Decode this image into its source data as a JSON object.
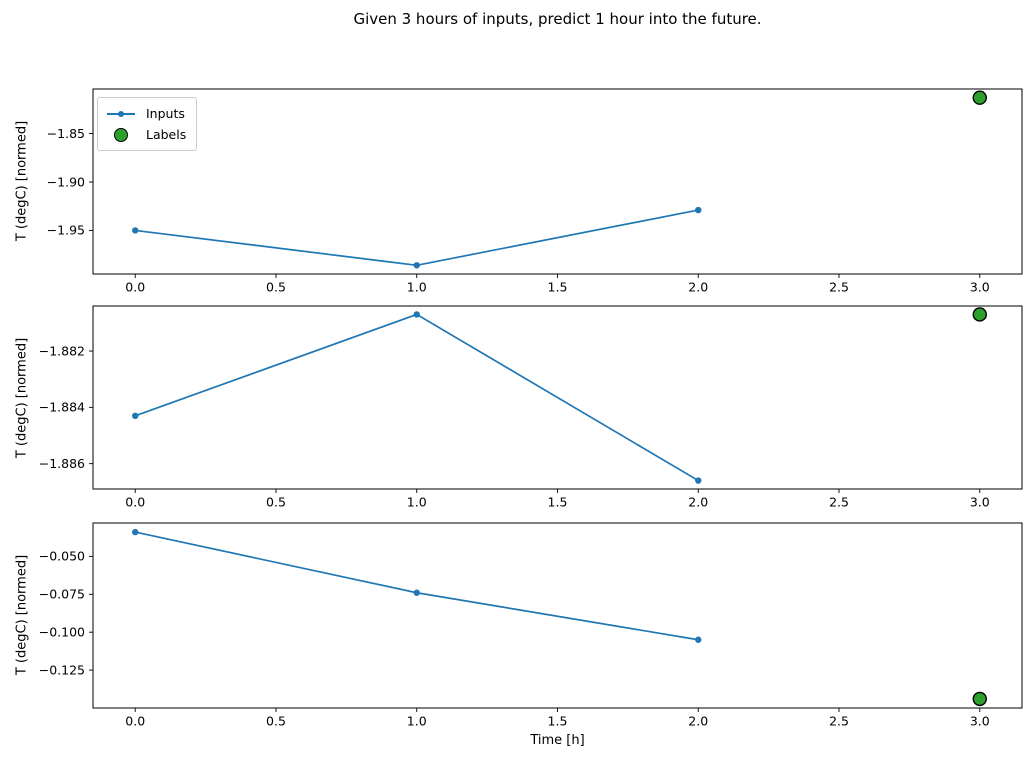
{
  "title": "Given 3 hours of inputs, predict 1 hour into the future.",
  "legend": {
    "inputs_label": "Inputs",
    "labels_label": "Labels"
  },
  "chart_data": {
    "type": "line",
    "title": "Given 3 hours of inputs, predict 1 hour into the future.",
    "xlabel": "Time [h]",
    "grid": false,
    "legend_position": "upper left of first subplot",
    "xlim": [
      -0.15,
      3.15
    ],
    "xticks": [
      {
        "v": 0.0,
        "label": "0.0"
      },
      {
        "v": 0.5,
        "label": "0.5"
      },
      {
        "v": 1.0,
        "label": "1.0"
      },
      {
        "v": 1.5,
        "label": "1.5"
      },
      {
        "v": 2.0,
        "label": "2.0"
      },
      {
        "v": 2.5,
        "label": "2.5"
      },
      {
        "v": 3.0,
        "label": "3.0"
      }
    ],
    "colors": {
      "inputs": "#1f77b4",
      "labels": "#2ca02c",
      "label_edge": "#000000"
    },
    "subplots": [
      {
        "ylabel": "T (degC) [normed]",
        "ylim": [
          -1.995,
          -1.804
        ],
        "yticks": [
          {
            "v": -1.85,
            "label": "−1.85"
          },
          {
            "v": -1.9,
            "label": "−1.90"
          },
          {
            "v": -1.95,
            "label": "−1.95"
          }
        ],
        "inputs": {
          "name": "Inputs",
          "x": [
            0,
            1,
            2
          ],
          "y": [
            -1.95,
            -1.986,
            -1.929
          ]
        },
        "label": {
          "name": "Labels",
          "x": 3,
          "y": -1.813
        }
      },
      {
        "ylabel": "T (degC) [normed]",
        "ylim": [
          -1.8869,
          -1.8804
        ],
        "yticks": [
          {
            "v": -1.882,
            "label": "−1.882"
          },
          {
            "v": -1.884,
            "label": "−1.884"
          },
          {
            "v": -1.886,
            "label": "−1.886"
          }
        ],
        "inputs": {
          "name": "Inputs",
          "x": [
            0,
            1,
            2
          ],
          "y": [
            -1.8843,
            -1.8807,
            -1.8866
          ]
        },
        "label": {
          "name": "Labels",
          "x": 3,
          "y": -1.8807
        }
      },
      {
        "ylabel": "T (degC) [normed]",
        "ylim": [
          -0.15,
          -0.028
        ],
        "yticks": [
          {
            "v": -0.05,
            "label": "−0.050"
          },
          {
            "v": -0.075,
            "label": "−0.075"
          },
          {
            "v": -0.1,
            "label": "−0.100"
          },
          {
            "v": -0.125,
            "label": "−0.125"
          }
        ],
        "inputs": {
          "name": "Inputs",
          "x": [
            0,
            1,
            2
          ],
          "y": [
            -0.034,
            -0.074,
            -0.105
          ]
        },
        "label": {
          "name": "Labels",
          "x": 3,
          "y": -0.144
        }
      }
    ]
  }
}
